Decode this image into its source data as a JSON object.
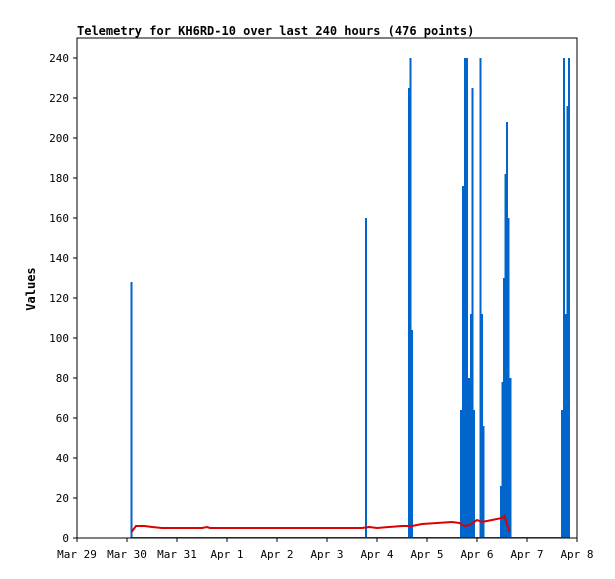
{
  "chart_data": {
    "type": "bar",
    "title": "Telemetry for KH6RD-10 over last 240 hours (476 points)",
    "xlabel": "",
    "ylabel": "Values",
    "ylim": [
      0,
      250
    ],
    "xlim": [
      0,
      10
    ],
    "grid": false,
    "x_tick_labels": [
      "Mar 29",
      "Mar 30",
      "Mar 31",
      "Apr 1",
      "Apr 2",
      "Apr 3",
      "Apr 4",
      "Apr 5",
      "Apr 6",
      "Apr 7",
      "Apr 8"
    ],
    "y_ticks": [
      0,
      20,
      40,
      60,
      80,
      100,
      120,
      140,
      160,
      180,
      200,
      220,
      240
    ],
    "x_tick_unit": "days since Mar 29",
    "series": [
      {
        "color": "#0066cc",
        "style": "spikes",
        "points": [
          [
            1.09,
            128
          ],
          [
            5.78,
            160
          ],
          [
            6.64,
            225
          ],
          [
            6.67,
            240
          ],
          [
            6.7,
            104
          ],
          [
            7.68,
            64
          ],
          [
            7.72,
            176
          ],
          [
            7.76,
            240
          ],
          [
            7.8,
            240
          ],
          [
            7.84,
            80
          ],
          [
            7.88,
            112
          ],
          [
            7.91,
            225
          ],
          [
            7.94,
            64
          ],
          [
            8.07,
            240
          ],
          [
            8.1,
            112
          ],
          [
            8.13,
            56
          ],
          [
            8.48,
            26
          ],
          [
            8.51,
            78
          ],
          [
            8.54,
            130
          ],
          [
            8.57,
            182
          ],
          [
            8.6,
            208
          ],
          [
            8.63,
            160
          ],
          [
            8.67,
            80
          ],
          [
            9.7,
            64
          ],
          [
            9.74,
            240
          ],
          [
            9.78,
            112
          ],
          [
            9.81,
            216
          ],
          [
            9.84,
            240
          ]
        ]
      },
      {
        "color": "#dd0000",
        "style": "line",
        "points": [
          [
            1.09,
            3
          ],
          [
            1.18,
            6
          ],
          [
            1.35,
            6
          ],
          [
            1.5,
            5.5
          ],
          [
            1.7,
            5
          ],
          [
            2.0,
            5
          ],
          [
            2.5,
            5
          ],
          [
            2.6,
            5.5
          ],
          [
            2.66,
            5
          ],
          [
            3.0,
            5
          ],
          [
            4.0,
            5
          ],
          [
            5.0,
            5
          ],
          [
            5.7,
            5
          ],
          [
            5.85,
            5.5
          ],
          [
            6.0,
            5
          ],
          [
            6.5,
            6
          ],
          [
            6.7,
            6
          ],
          [
            6.9,
            7
          ],
          [
            7.2,
            7.5
          ],
          [
            7.5,
            8
          ],
          [
            7.65,
            7.5
          ],
          [
            7.75,
            6
          ],
          [
            7.85,
            6.5
          ],
          [
            8.0,
            9
          ],
          [
            8.1,
            8
          ],
          [
            8.3,
            9
          ],
          [
            8.5,
            10
          ],
          [
            8.55,
            11
          ],
          [
            8.65,
            3
          ]
        ]
      }
    ]
  }
}
